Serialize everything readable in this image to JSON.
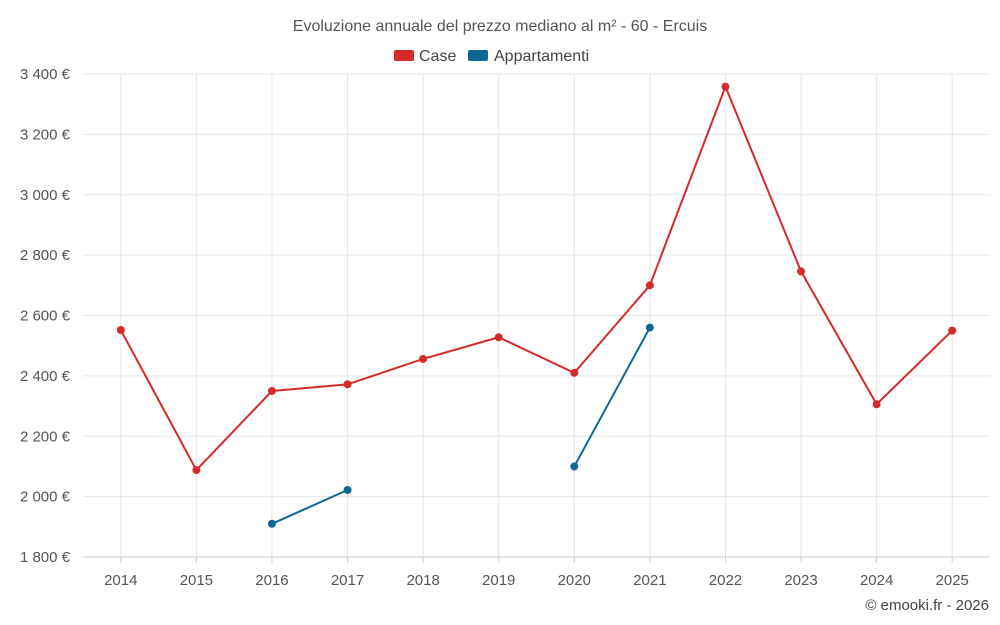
{
  "chart_data": {
    "type": "line",
    "title": "Evoluzione annuale del prezzo mediano al m² - 60 - Ercuis",
    "categories": [
      "2014",
      "2015",
      "2016",
      "2017",
      "2018",
      "2019",
      "2020",
      "2021",
      "2022",
      "2023",
      "2024",
      "2025"
    ],
    "series": [
      {
        "name": "Case",
        "color": "#d42a2a",
        "values": [
          2552,
          2088,
          2350,
          2372,
          2456,
          2528,
          2410,
          2700,
          3358,
          2746,
          2306,
          2550
        ]
      },
      {
        "name": "Appartamenti",
        "color": "#0f6796",
        "values": [
          null,
          null,
          1910,
          2022,
          null,
          null,
          2100,
          2560,
          null,
          null,
          null,
          null
        ]
      }
    ],
    "ylim": [
      1800,
      3400
    ],
    "yticks": [
      1800,
      2000,
      2200,
      2400,
      2600,
      2800,
      3000,
      3200,
      3400
    ],
    "ytick_labels": [
      "1 800 €",
      "2 000 €",
      "2 200 €",
      "2 400 €",
      "2 600 €",
      "2 800 €",
      "3 000 €",
      "3 200 €",
      "3 400 €"
    ],
    "xlabel": "",
    "ylabel": "",
    "legend_position": "top-center",
    "grid": true
  },
  "credit": "© emooki.fr - 2026"
}
